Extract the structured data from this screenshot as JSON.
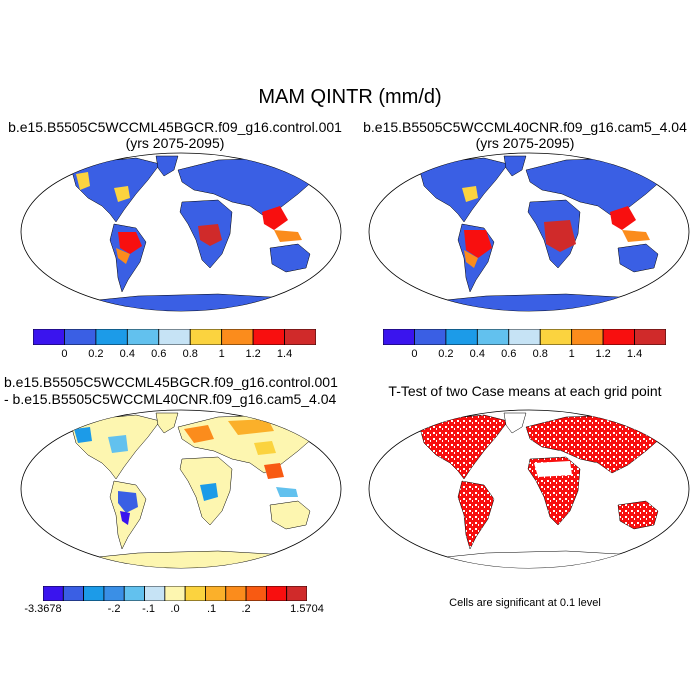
{
  "figure": {
    "main_title": "MAM QINTR (mm/d)"
  },
  "panels": {
    "top_left": {
      "title_line1": "b.e15.B5505C5WCCML45BGCR.f09_g16.control.001",
      "title_line2": "(yrs 2075-2095)"
    },
    "top_right": {
      "title_line1": "b.e15.B5505C5WCCML40CNR.f09_g16.cam5_4.04",
      "title_line2": "(yrs 2075-2095)"
    },
    "bottom_left": {
      "title_line1": "b.e15.B5505C5WCCML45BGCR.f09_g16.control.001",
      "title_line2": "- b.e15.B5505C5WCCML40CNR.f09_g16.cam5_4.04"
    },
    "bottom_right": {
      "title_line1": "T-Test of two Case means at each grid point",
      "footnote": "Cells are significant at 0.1 level"
    }
  },
  "colorbars": {
    "case": {
      "colors": [
        "#3a14ee",
        "#3a5fe4",
        "#1c9be8",
        "#62c1ee",
        "#c6e3f5",
        "#fbd33f",
        "#fb8c1c",
        "#f80f0f",
        "#d02a2a"
      ],
      "labels": [
        "0",
        "0.2",
        "0.4",
        "0.6",
        "0.8",
        "1",
        "1.2",
        "1.4"
      ]
    },
    "diff": {
      "colors": [
        "#3a14ee",
        "#3a5fe4",
        "#1c9be8",
        "#3a8fe6",
        "#62c1ee",
        "#c6e3f5",
        "#fdf6b0",
        "#fbd33f",
        "#fbb02a",
        "#fb8c1c",
        "#f85a12",
        "#f80f0f",
        "#d02a2a"
      ],
      "labels": [
        "-3.3678",
        "-.2",
        "-.1",
        ".0",
        ".1",
        ".2",
        "1.5704"
      ]
    }
  },
  "colors": {
    "ocean": "#ffffff",
    "case_land_low": "#3a5fe4",
    "diff_land_neutral": "#fdf6b0",
    "significant": "#f80f0f",
    "coastline": "#000000"
  }
}
